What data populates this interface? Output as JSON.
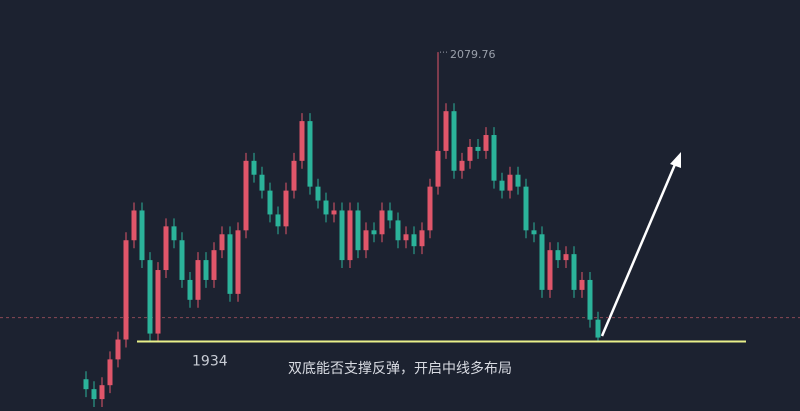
{
  "chart_data": {
    "type": "candlestick",
    "caption": "双底能否支撑反弹，开启中线多布局",
    "up_color": "#e0566a",
    "down_color": "#2bb39a",
    "ylim": [
      1899,
      2106
    ],
    "support": 1934,
    "support_label": "1934",
    "support_color": "#e8f08a",
    "price_line": 1946,
    "peak_index": 44,
    "open": [
      1915,
      1910,
      1905,
      1912,
      1925,
      1935,
      1985,
      2000,
      1975,
      1938,
      1970,
      1992,
      1985,
      1965,
      1955,
      1975,
      1965,
      1980,
      1988,
      1958,
      1990,
      2025,
      2018,
      2010,
      1998,
      1992,
      2010,
      2025,
      2045,
      2012,
      2005,
      1998,
      2000,
      1975,
      2000,
      1980,
      1990,
      1988,
      2000,
      1995,
      1985,
      1988,
      1982,
      1990,
      2012,
      2030,
      2050,
      2020,
      2025,
      2032,
      2030,
      2038,
      2015,
      2010,
      2018,
      2012,
      1990,
      1988,
      1960,
      1980,
      1975,
      1978,
      1960,
      1965,
      1945
    ],
    "high": [
      1919,
      1914,
      1916,
      1929,
      1939,
      1989,
      2004,
      2004,
      1979,
      1974,
      1996,
      1996,
      1989,
      1969,
      1979,
      1979,
      1984,
      1992,
      1992,
      1994,
      2029,
      2029,
      2022,
      2014,
      2002,
      2014,
      2029,
      2049,
      2049,
      2016,
      2009,
      2004,
      2004,
      2004,
      2004,
      1994,
      1994,
      2004,
      2004,
      1999,
      1992,
      1992,
      1994,
      2016,
      2079.76,
      2054,
      2054,
      2029,
      2036,
      2036,
      2042,
      2042,
      2019,
      2022,
      2022,
      2016,
      1994,
      1992,
      1984,
      1984,
      1982,
      1982,
      1969,
      1969,
      1949
    ],
    "low": [
      1906,
      1901,
      1901,
      1908,
      1921,
      1931,
      1981,
      1971,
      1934,
      1934,
      1966,
      1981,
      1961,
      1951,
      1951,
      1961,
      1961,
      1976,
      1954,
      1954,
      1986,
      2014,
      2006,
      1994,
      1988,
      1988,
      2006,
      2021,
      2008,
      2001,
      1994,
      1994,
      1971,
      1971,
      1976,
      1976,
      1984,
      1984,
      1991,
      1981,
      1981,
      1978,
      1978,
      1986,
      2008,
      2026,
      2016,
      2016,
      2021,
      2026,
      2026,
      2011,
      2006,
      2006,
      2008,
      1986,
      1984,
      1956,
      1956,
      1971,
      1971,
      1956,
      1956,
      1941,
      1934
    ],
    "close": [
      1910,
      1905,
      1912,
      1925,
      1935,
      1985,
      2000,
      1975,
      1938,
      1970,
      1992,
      1985,
      1965,
      1955,
      1975,
      1965,
      1980,
      1988,
      1958,
      1990,
      2025,
      2018,
      2010,
      1998,
      1992,
      2010,
      2025,
      2045,
      2012,
      2005,
      1998,
      2000,
      1975,
      2000,
      1980,
      1990,
      1988,
      2000,
      1995,
      1985,
      1988,
      1982,
      1990,
      2012,
      2030,
      2050,
      2020,
      2025,
      2032,
      2030,
      2038,
      2015,
      2010,
      2018,
      2012,
      1990,
      1988,
      1960,
      1980,
      1975,
      1978,
      1960,
      1965,
      1945,
      1936
    ]
  }
}
